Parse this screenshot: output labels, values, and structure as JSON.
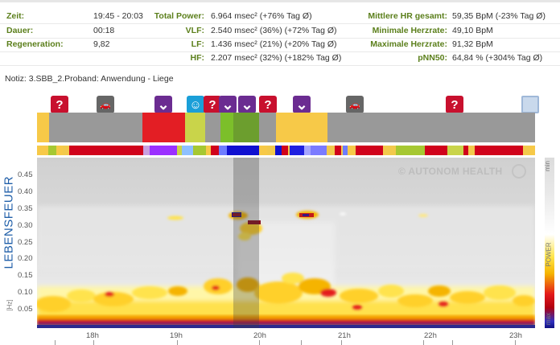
{
  "stats": {
    "rows": [
      {
        "l1": "Zeit:",
        "v1": "19:45 - 20:03",
        "l2": "Total Power:",
        "v2": "6.964 msec² (+76% Tag Ø)",
        "l3": "Mittlere HR gesamt:",
        "v3": "59,35 BpM (-23% Tag Ø)"
      },
      {
        "l1": "Dauer:",
        "v1": "00:18",
        "l2": "VLF:",
        "v2": "2.540 msec² (36%) (+72% Tag Ø)",
        "l3": "Minimale Herzrate:",
        "v3": "49,10 BpM"
      },
      {
        "l1": "Regeneration:",
        "v1": "9,82",
        "l2": "LF:",
        "v2": "1.436 msec² (21%) (+20% Tag Ø)",
        "l3": "Maximale Herzrate:",
        "v3": "91,32 BpM"
      },
      {
        "l1": "",
        "v1": "",
        "l2": "HF:",
        "v2": "2.207 msec² (32%) (+182% Tag Ø)",
        "l3": "pNN50:",
        "v3": "64,84 % (+304% Tag Ø)"
      }
    ]
  },
  "notiz": "Notiz: 3.SBB_2.Proband: Anwendung - Liege",
  "markers": [
    {
      "name": "question-marker-1",
      "icon": "question-icon",
      "glyph": "?",
      "color": "#c8102e"
    },
    {
      "name": "car-marker-1",
      "icon": "car-icon",
      "glyph": "🚗",
      "color": "#666666"
    },
    {
      "name": "chevron-marker-1",
      "icon": "chevron-down-icon",
      "glyph": "⌄",
      "color": "#6b2c91"
    },
    {
      "name": "head-marker",
      "icon": "head-icon",
      "glyph": "☺",
      "color": "#1a9fd8"
    },
    {
      "name": "question-marker-2",
      "icon": "question-icon",
      "glyph": "?",
      "color": "#c8102e"
    },
    {
      "name": "chevron-marker-2",
      "icon": "chevron-down-icon",
      "glyph": "⌄",
      "color": "#6b2c91"
    },
    {
      "name": "chevron-marker-3",
      "icon": "chevron-down-icon",
      "glyph": "⌄",
      "color": "#6b2c91"
    },
    {
      "name": "question-marker-3",
      "icon": "question-icon",
      "glyph": "?",
      "color": "#c8102e"
    },
    {
      "name": "chevron-marker-4",
      "icon": "chevron-down-icon",
      "glyph": "⌄",
      "color": "#6b2c91"
    },
    {
      "name": "car-marker-2",
      "icon": "car-icon",
      "glyph": "🚗",
      "color": "#666666"
    },
    {
      "name": "question-marker-4",
      "icon": "question-icon",
      "glyph": "?",
      "color": "#c8102e"
    },
    {
      "name": "comment-marker",
      "icon": "comment-icon",
      "glyph": "",
      "color": "#c9d9ec"
    }
  ],
  "chart_data": {
    "type": "heatmap",
    "ylabel": "LEBENSFEUER",
    "yunit": "[Hz]",
    "yticks": [
      "0.45",
      "0.40",
      "0.35",
      "0.30",
      "0.25",
      "0.20",
      "0.15",
      "0.10",
      "0.05"
    ],
    "xticks": [
      "18h",
      "19h",
      "20h",
      "21h",
      "22h",
      "23h"
    ],
    "colorbar": {
      "top": "min",
      "middle": "POWER",
      "bottom": "max"
    },
    "watermark": "© AUTONOM HEALTH"
  }
}
